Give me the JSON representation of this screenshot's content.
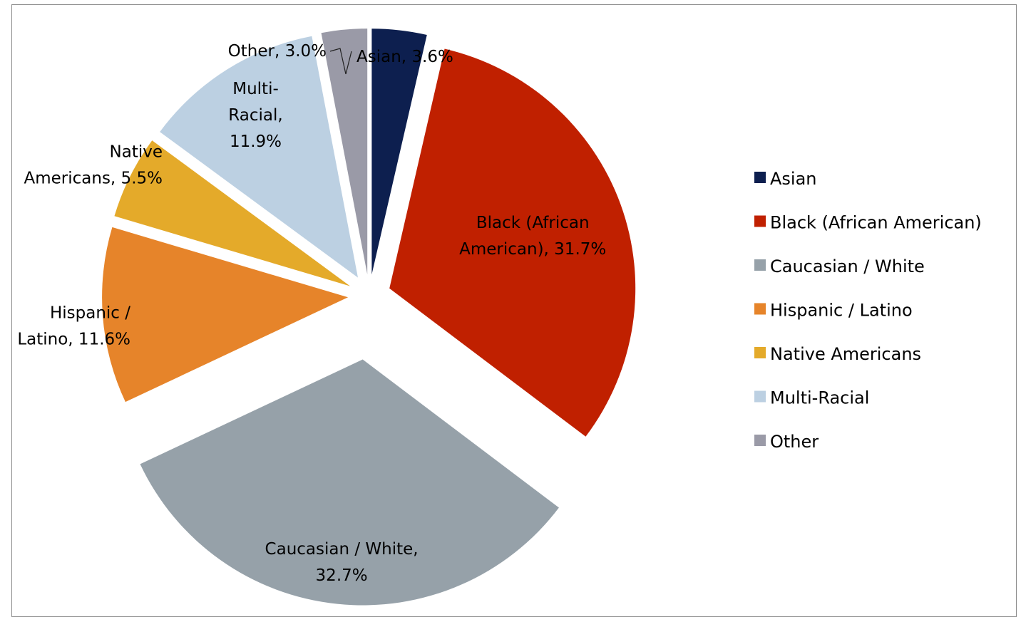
{
  "chart_data": {
    "type": "pie",
    "exploded": true,
    "legend_position": "right",
    "slices": [
      {
        "name": "Asian",
        "value": 3.6,
        "color": "#0d1f4f",
        "label_lines": [
          "Asian, 3.6%"
        ]
      },
      {
        "name": "Black (African American)",
        "value": 31.7,
        "color": "#c02000",
        "label_lines": [
          "Black (African",
          "American), 31.7%"
        ]
      },
      {
        "name": "Caucasian / White",
        "value": 32.7,
        "color": "#96a1a9",
        "label_lines": [
          "Caucasian / White,",
          "32.7%"
        ]
      },
      {
        "name": "Hispanic / Latino",
        "value": 11.6,
        "color": "#e6842a",
        "label_lines": [
          "Hispanic /",
          "Latino, 11.6%"
        ]
      },
      {
        "name": "Native Americans",
        "value": 5.5,
        "color": "#e4aa2a",
        "label_lines": [
          "Native",
          "Americans, 5.5%"
        ]
      },
      {
        "name": "Multi-Racial",
        "value": 11.9,
        "color": "#bcd0e2",
        "label_lines": [
          "Multi-",
          "Racial,",
          "11.9%"
        ]
      },
      {
        "name": "Other",
        "value": 3.0,
        "color": "#9a9aa7",
        "label_lines": [
          "Other, 3.0%"
        ]
      }
    ]
  }
}
